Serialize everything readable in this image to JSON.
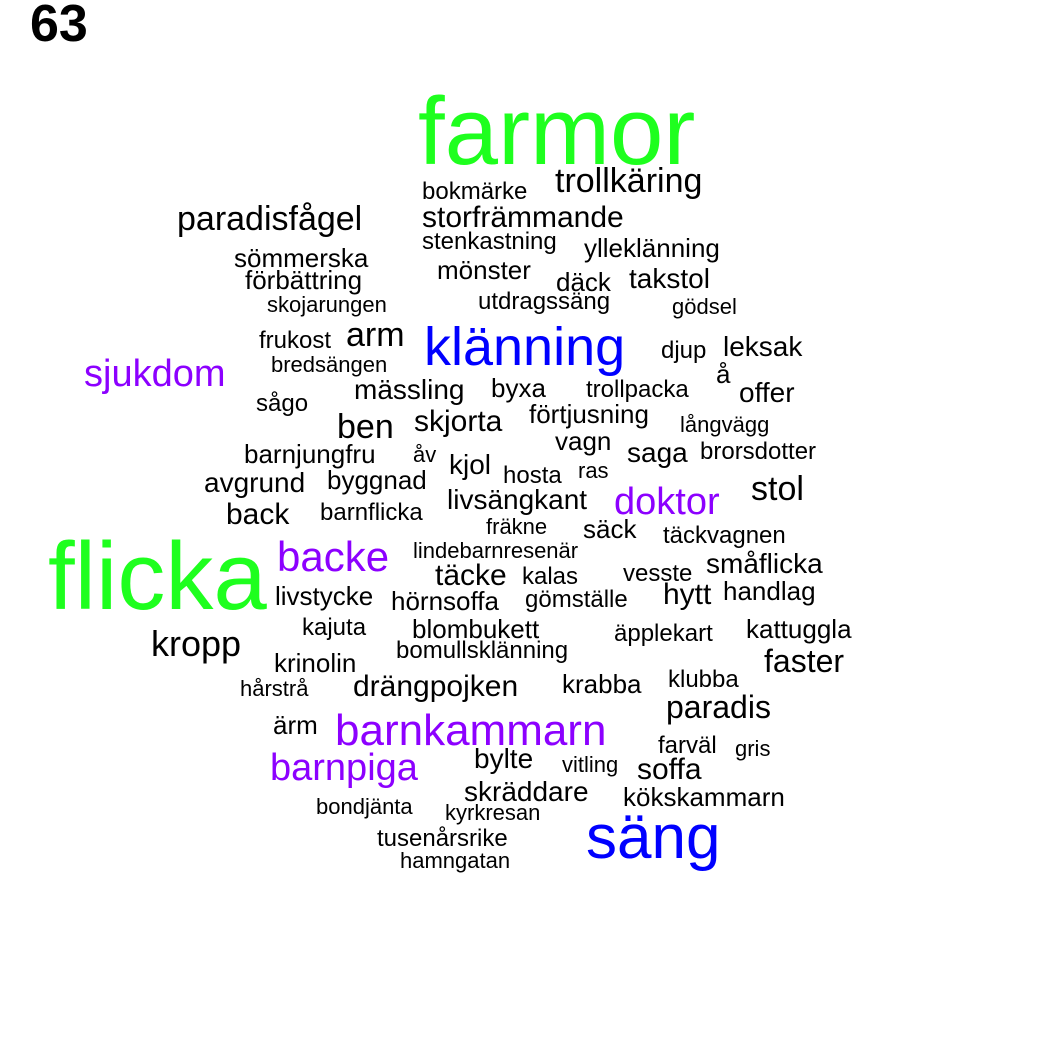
{
  "panel_label": "63",
  "colors": {
    "green": "#1eff1e",
    "blue": "#0000ff",
    "purple": "#8c00ff",
    "black": "#000000"
  },
  "words": [
    {
      "text": "farmor",
      "color": "green"
    },
    {
      "text": "flicka",
      "color": "green"
    },
    {
      "text": "klänning",
      "color": "blue"
    },
    {
      "text": "säng",
      "color": "blue"
    },
    {
      "text": "barnkammarn",
      "color": "purple"
    },
    {
      "text": "backe",
      "color": "purple"
    },
    {
      "text": "barnpiga",
      "color": "purple"
    },
    {
      "text": "sjukdom",
      "color": "purple"
    },
    {
      "text": "doktor",
      "color": "purple"
    },
    {
      "text": "trollkäring",
      "color": "black"
    },
    {
      "text": "bokmärke",
      "color": "black"
    },
    {
      "text": "paradisfågel",
      "color": "black"
    },
    {
      "text": "storfrämmande",
      "color": "black"
    },
    {
      "text": "stenkastning",
      "color": "black"
    },
    {
      "text": "yllеklänning",
      "color": "black"
    },
    {
      "text": "sömmerska",
      "color": "black"
    },
    {
      "text": "förbättring",
      "color": "black"
    },
    {
      "text": "mönster",
      "color": "black"
    },
    {
      "text": "däck",
      "color": "black"
    },
    {
      "text": "takstol",
      "color": "black"
    },
    {
      "text": "skojarungen",
      "color": "black"
    },
    {
      "text": "utdragssäng",
      "color": "black"
    },
    {
      "text": "gödsel",
      "color": "black"
    },
    {
      "text": "frukost",
      "color": "black"
    },
    {
      "text": "arm",
      "color": "black"
    },
    {
      "text": "djup",
      "color": "black"
    },
    {
      "text": "leksak",
      "color": "black"
    },
    {
      "text": "bredsängen",
      "color": "black"
    },
    {
      "text": "å",
      "color": "black"
    },
    {
      "text": "mässling",
      "color": "black"
    },
    {
      "text": "byxa",
      "color": "black"
    },
    {
      "text": "trollpacka",
      "color": "black"
    },
    {
      "text": "offer",
      "color": "black"
    },
    {
      "text": "sågo",
      "color": "black"
    },
    {
      "text": "förtjusning",
      "color": "black"
    },
    {
      "text": "ben",
      "color": "black"
    },
    {
      "text": "skjorta",
      "color": "black"
    },
    {
      "text": "långvägg",
      "color": "black"
    },
    {
      "text": "vagn",
      "color": "black"
    },
    {
      "text": "barnjungfru",
      "color": "black"
    },
    {
      "text": "åv",
      "color": "black"
    },
    {
      "text": "saga",
      "color": "black"
    },
    {
      "text": "brorsdotter",
      "color": "black"
    },
    {
      "text": "kjol",
      "color": "black"
    },
    {
      "text": "hosta",
      "color": "black"
    },
    {
      "text": "ras",
      "color": "black"
    },
    {
      "text": "avgrund",
      "color": "black"
    },
    {
      "text": "byggnad",
      "color": "black"
    },
    {
      "text": "stol",
      "color": "black"
    },
    {
      "text": "livsängkant",
      "color": "black"
    },
    {
      "text": "back",
      "color": "black"
    },
    {
      "text": "barnflicka",
      "color": "black"
    },
    {
      "text": "fräkne",
      "color": "black"
    },
    {
      "text": "säck",
      "color": "black"
    },
    {
      "text": "täckvagnen",
      "color": "black"
    },
    {
      "text": "lindebarnresenär",
      "color": "black"
    },
    {
      "text": "småflicka",
      "color": "black"
    },
    {
      "text": "täcke",
      "color": "black"
    },
    {
      "text": "kalas",
      "color": "black"
    },
    {
      "text": "vesste",
      "color": "black"
    },
    {
      "text": "livstycke",
      "color": "black"
    },
    {
      "text": "hörnsoffa",
      "color": "black"
    },
    {
      "text": "gömställe",
      "color": "black"
    },
    {
      "text": "hytt",
      "color": "black"
    },
    {
      "text": "handlag",
      "color": "black"
    },
    {
      "text": "kajuta",
      "color": "black"
    },
    {
      "text": "blombukett",
      "color": "black"
    },
    {
      "text": "äpplekart",
      "color": "black"
    },
    {
      "text": "kattuggla",
      "color": "black"
    },
    {
      "text": "kropp",
      "color": "black"
    },
    {
      "text": "bomullsklänning",
      "color": "black"
    },
    {
      "text": "krinolin",
      "color": "black"
    },
    {
      "text": "faster",
      "color": "black"
    },
    {
      "text": "hårstrå",
      "color": "black"
    },
    {
      "text": "drängpojken",
      "color": "black"
    },
    {
      "text": "krabba",
      "color": "black"
    },
    {
      "text": "klubba",
      "color": "black"
    },
    {
      "text": "paradis",
      "color": "black"
    },
    {
      "text": "ärm",
      "color": "black"
    },
    {
      "text": "farväl",
      "color": "black"
    },
    {
      "text": "gris",
      "color": "black"
    },
    {
      "text": "bylte",
      "color": "black"
    },
    {
      "text": "vitling",
      "color": "black"
    },
    {
      "text": "soffa",
      "color": "black"
    },
    {
      "text": "skräddare",
      "color": "black"
    },
    {
      "text": "bondjänta",
      "color": "black"
    },
    {
      "text": "kyrkresan",
      "color": "black"
    },
    {
      "text": "kökskammarn",
      "color": "black"
    },
    {
      "text": "tusenårsrike",
      "color": "black"
    },
    {
      "text": "hamngatan",
      "color": "black"
    }
  ]
}
